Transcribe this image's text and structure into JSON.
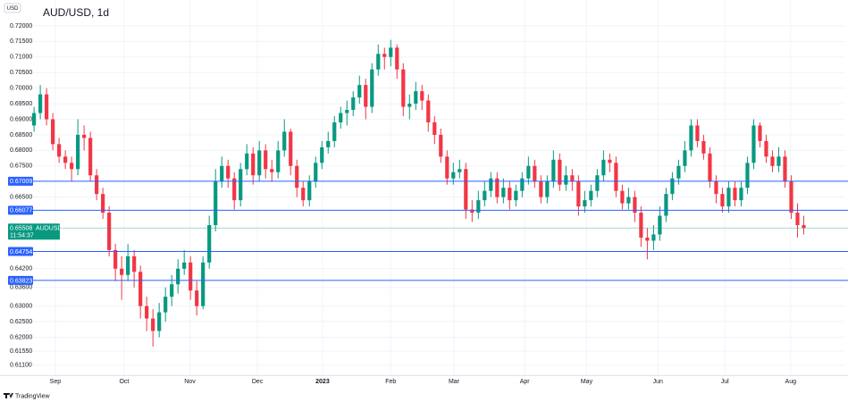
{
  "chart_data": {
    "type": "candlestick",
    "title": "AUD/USD, 1d",
    "currency": "USD",
    "symbol": "AUDUSD",
    "countdown": "11:54:37",
    "brand": "TradingView",
    "up_color": "#089981",
    "down_color": "#f23645",
    "level_color": "#2962ff",
    "grid": true,
    "open": [
      0.688,
      0.692,
      0.698,
      0.69,
      0.682,
      0.678,
      0.676,
      0.674,
      0.685,
      0.684,
      0.672,
      0.666,
      0.66,
      0.648,
      0.642,
      0.64,
      0.646,
      0.641,
      0.63,
      0.626,
      0.622,
      0.628,
      0.633,
      0.637,
      0.642,
      0.644,
      0.635,
      0.63,
      0.644,
      0.656,
      0.67,
      0.675,
      0.671,
      0.664,
      0.674,
      0.679,
      0.672,
      0.68,
      0.674,
      0.673,
      0.68,
      0.686,
      0.675,
      0.668,
      0.664,
      0.67,
      0.676,
      0.681,
      0.683,
      0.689,
      0.692,
      0.693,
      0.697,
      0.701,
      0.694,
      0.706,
      0.711,
      0.71,
      0.713,
      0.706,
      0.694,
      0.695,
      0.699,
      0.696,
      0.689,
      0.685,
      0.678,
      0.671,
      0.673,
      0.674,
      0.661,
      0.66,
      0.664,
      0.667,
      0.671,
      0.665,
      0.668,
      0.664,
      0.667,
      0.671,
      0.675,
      0.67,
      0.665,
      0.67,
      0.677,
      0.669,
      0.672,
      0.67,
      0.662,
      0.664,
      0.667,
      0.672,
      0.677,
      0.676,
      0.667,
      0.663,
      0.665,
      0.66,
      0.652,
      0.651,
      0.653,
      0.659,
      0.666,
      0.671,
      0.675,
      0.68,
      0.688,
      0.683,
      0.679,
      0.67,
      0.666,
      0.662,
      0.668,
      0.664,
      0.668,
      0.676,
      0.688,
      0.683,
      0.678,
      0.675,
      0.678,
      0.67,
      0.66,
      0.656
    ],
    "high": [
      0.694,
      0.701,
      0.7,
      0.692,
      0.684,
      0.68,
      0.678,
      0.69,
      0.688,
      0.686,
      0.674,
      0.668,
      0.662,
      0.65,
      0.646,
      0.65,
      0.648,
      0.643,
      0.633,
      0.629,
      0.631,
      0.636,
      0.64,
      0.645,
      0.648,
      0.646,
      0.638,
      0.646,
      0.659,
      0.674,
      0.678,
      0.677,
      0.673,
      0.676,
      0.682,
      0.681,
      0.683,
      0.682,
      0.677,
      0.683,
      0.69,
      0.687,
      0.677,
      0.67,
      0.672,
      0.678,
      0.683,
      0.686,
      0.691,
      0.694,
      0.696,
      0.699,
      0.704,
      0.703,
      0.708,
      0.714,
      0.713,
      0.7155,
      0.714,
      0.708,
      0.698,
      0.702,
      0.701,
      0.698,
      0.691,
      0.687,
      0.68,
      0.676,
      0.677,
      0.676,
      0.664,
      0.667,
      0.67,
      0.673,
      0.673,
      0.671,
      0.67,
      0.669,
      0.673,
      0.678,
      0.677,
      0.672,
      0.672,
      0.68,
      0.679,
      0.675,
      0.674,
      0.672,
      0.667,
      0.669,
      0.674,
      0.68,
      0.679,
      0.678,
      0.669,
      0.668,
      0.667,
      0.662,
      0.655,
      0.656,
      0.662,
      0.668,
      0.673,
      0.677,
      0.683,
      0.69,
      0.69,
      0.685,
      0.681,
      0.672,
      0.668,
      0.67,
      0.67,
      0.67,
      0.678,
      0.69,
      0.689,
      0.685,
      0.68,
      0.681,
      0.68,
      0.672,
      0.663,
      0.659
    ],
    "low": [
      0.686,
      0.69,
      0.688,
      0.68,
      0.676,
      0.674,
      0.67,
      0.672,
      0.68,
      0.67,
      0.664,
      0.658,
      0.646,
      0.638,
      0.632,
      0.638,
      0.636,
      0.626,
      0.622,
      0.617,
      0.62,
      0.625,
      0.63,
      0.634,
      0.64,
      0.632,
      0.627,
      0.629,
      0.642,
      0.654,
      0.668,
      0.668,
      0.661,
      0.662,
      0.672,
      0.669,
      0.67,
      0.671,
      0.67,
      0.671,
      0.678,
      0.672,
      0.665,
      0.662,
      0.662,
      0.668,
      0.674,
      0.679,
      0.681,
      0.687,
      0.688,
      0.691,
      0.695,
      0.69,
      0.692,
      0.704,
      0.706,
      0.707,
      0.703,
      0.691,
      0.69,
      0.693,
      0.693,
      0.686,
      0.682,
      0.676,
      0.669,
      0.669,
      0.671,
      0.658,
      0.657,
      0.658,
      0.662,
      0.665,
      0.663,
      0.663,
      0.661,
      0.662,
      0.665,
      0.669,
      0.668,
      0.663,
      0.663,
      0.668,
      0.667,
      0.667,
      0.667,
      0.659,
      0.66,
      0.662,
      0.665,
      0.67,
      0.673,
      0.665,
      0.661,
      0.661,
      0.657,
      0.649,
      0.645,
      0.648,
      0.651,
      0.657,
      0.664,
      0.669,
      0.673,
      0.678,
      0.681,
      0.677,
      0.668,
      0.663,
      0.66,
      0.66,
      0.662,
      0.662,
      0.666,
      0.674,
      0.681,
      0.676,
      0.673,
      0.673,
      0.668,
      0.658,
      0.652,
      0.653
    ],
    "close": [
      0.692,
      0.698,
      0.69,
      0.682,
      0.678,
      0.676,
      0.674,
      0.685,
      0.684,
      0.672,
      0.666,
      0.66,
      0.648,
      0.642,
      0.64,
      0.646,
      0.641,
      0.63,
      0.626,
      0.622,
      0.628,
      0.633,
      0.637,
      0.642,
      0.644,
      0.635,
      0.63,
      0.644,
      0.656,
      0.67,
      0.675,
      0.671,
      0.664,
      0.674,
      0.679,
      0.672,
      0.68,
      0.674,
      0.673,
      0.68,
      0.686,
      0.675,
      0.668,
      0.664,
      0.67,
      0.676,
      0.681,
      0.683,
      0.689,
      0.692,
      0.693,
      0.697,
      0.701,
      0.694,
      0.706,
      0.711,
      0.71,
      0.713,
      0.706,
      0.694,
      0.695,
      0.699,
      0.696,
      0.689,
      0.685,
      0.678,
      0.671,
      0.673,
      0.674,
      0.661,
      0.66,
      0.664,
      0.667,
      0.671,
      0.665,
      0.668,
      0.664,
      0.667,
      0.671,
      0.675,
      0.67,
      0.665,
      0.67,
      0.677,
      0.669,
      0.672,
      0.67,
      0.662,
      0.664,
      0.667,
      0.672,
      0.677,
      0.676,
      0.667,
      0.663,
      0.665,
      0.66,
      0.652,
      0.651,
      0.653,
      0.659,
      0.666,
      0.671,
      0.675,
      0.68,
      0.688,
      0.683,
      0.679,
      0.67,
      0.666,
      0.662,
      0.668,
      0.664,
      0.668,
      0.676,
      0.688,
      0.683,
      0.678,
      0.675,
      0.678,
      0.67,
      0.66,
      0.656,
      0.65508
    ],
    "levels": [
      0.67009,
      0.66077,
      0.64754,
      0.63823
    ],
    "current_price": 0.65508,
    "xlim": [
      -0.3,
      129.5
    ],
    "xticks": [
      {
        "value": 3.4,
        "label": "Sep"
      },
      {
        "value": 14.4,
        "label": "Oct"
      },
      {
        "value": 24.9,
        "label": "Nov"
      },
      {
        "value": 35.7,
        "label": "Dec"
      },
      {
        "value": 46.1,
        "label": "2023"
      },
      {
        "value": 57,
        "label": "Feb"
      },
      {
        "value": 67.1,
        "label": "Mar"
      },
      {
        "value": 78.4,
        "label": "Apr"
      },
      {
        "value": 88.3,
        "label": "May"
      },
      {
        "value": 99.7,
        "label": "Jun"
      },
      {
        "value": 110.4,
        "label": "Jul"
      },
      {
        "value": 120.9,
        "label": "Aug"
      }
    ],
    "ylim": [
      0.6078,
      0.7283
    ],
    "yticks": [
      {
        "value": 0.72,
        "label": "0.72000"
      },
      {
        "value": 0.715,
        "label": "0.71500"
      },
      {
        "value": 0.71,
        "label": "0.71000"
      },
      {
        "value": 0.705,
        "label": "0.70500"
      },
      {
        "value": 0.7,
        "label": "0.70000"
      },
      {
        "value": 0.695,
        "label": "0.69500"
      },
      {
        "value": 0.69,
        "label": "0.69000"
      },
      {
        "value": 0.685,
        "label": "0.68500"
      },
      {
        "value": 0.68,
        "label": "0.68000"
      },
      {
        "value": 0.675,
        "label": "0.67500"
      },
      {
        "value": 0.665,
        "label": "0.66500"
      },
      {
        "value": 0.642,
        "label": "0.64200"
      },
      {
        "value": 0.636,
        "label": "0.63600"
      },
      {
        "value": 0.63,
        "label": "0.63000"
      },
      {
        "value": 0.625,
        "label": "0.62500"
      },
      {
        "value": 0.62,
        "label": "0.62000"
      },
      {
        "value": 0.6155,
        "label": "0.61550"
      },
      {
        "value": 0.611,
        "label": "0.61100"
      }
    ]
  }
}
